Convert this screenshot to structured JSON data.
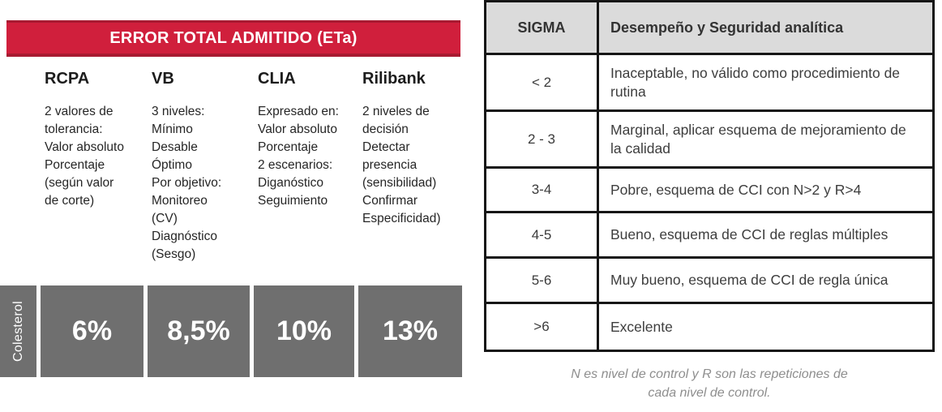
{
  "left_panel": {
    "title": "ERROR TOTAL ADMITIDO (ETa)",
    "row_label": "Colesterol",
    "columns": [
      {
        "header": "RCPA",
        "body": "2 valores de\ntolerancia:\nValor absoluto\nPorcentaje\n(según valor\nde corte)",
        "value": "6%"
      },
      {
        "header": "VB",
        "body": "3 niveles:\nMínimo\nDesable\nÓptimo\nPor objetivo:\nMonitoreo\n(CV)\nDiagnóstico\n(Sesgo)",
        "value": "8,5%"
      },
      {
        "header": "CLIA",
        "body": "Expresado en:\nValor absoluto\nPorcentaje\n2 escenarios:\nDiganóstico\nSeguimiento",
        "value": "10%"
      },
      {
        "header": "Rilibank",
        "body": "2 niveles de\ndecisión\nDetectar\npresencia\n(sensibilidad)\nConfirmar\nEspecificidad)",
        "value": "13%"
      }
    ],
    "colors": {
      "banner": "#d01f3c",
      "banner_edge": "#a81a31",
      "banner_text": "#ffffff",
      "value_box": "#6f6f6f",
      "value_text": "#ffffff"
    }
  },
  "sigma_table": {
    "headers": {
      "sigma": "SIGMA",
      "description": "Desempeño y Seguridad analítica"
    },
    "rows": [
      {
        "sigma": "< 2",
        "description": "Inaceptable, no válido como procedimiento de rutina"
      },
      {
        "sigma": "2 - 3",
        "description": "Marginal, aplicar esquema de mejoramiento de la calidad"
      },
      {
        "sigma": "3-4",
        "description": "Pobre, esquema de CCI con N>2 y R>4"
      },
      {
        "sigma": "4-5",
        "description": "Bueno, esquema de CCI de reglas múltiples"
      },
      {
        "sigma": "5-6",
        "description": "Muy bueno, esquema de CCI de regla única"
      },
      {
        "sigma": ">6",
        "description": "Excelente"
      }
    ],
    "footnote": "N es nivel de control y R son las repeticiones de\ncada nivel de control.",
    "colors": {
      "header_bg": "#dbdbdb",
      "border": "#161616"
    }
  }
}
